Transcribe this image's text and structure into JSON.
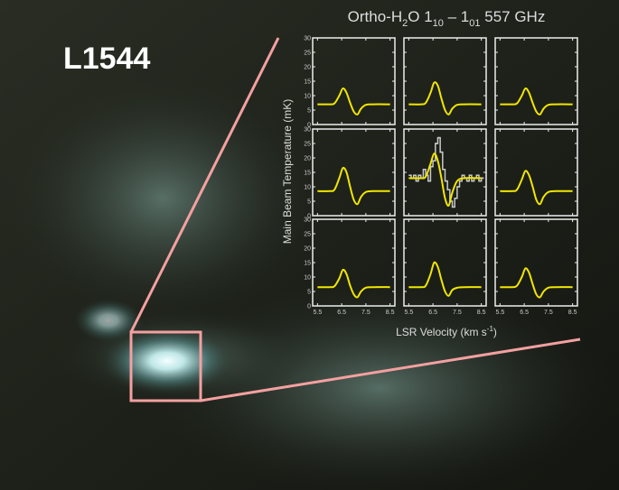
{
  "chart_data": {
    "type": "line",
    "source": "L1544",
    "title": {
      "parts": [
        "Ortho-H",
        "2",
        "O 1",
        "10",
        " – 1",
        "01",
        " 557 GHz"
      ]
    },
    "y_label": "Main Beam Temperature (mK)",
    "x_label": {
      "parts": [
        "LSR Velocity (km s",
        "-1",
        ")"
      ]
    },
    "xlim": [
      5.3,
      8.7
    ],
    "xticks": [
      5.5,
      6.5,
      7.5,
      8.5
    ],
    "ylim": [
      0,
      30
    ],
    "yticks": [
      0,
      5,
      10,
      15,
      20,
      25,
      30
    ],
    "color": "#f2e600",
    "observed_color": "#c8c8c8",
    "panels": [
      {
        "x": [
          5.5,
          6.0,
          6.2,
          6.4,
          6.55,
          6.7,
          6.85,
          7.0,
          7.15,
          7.3,
          7.5,
          7.8,
          8.5
        ],
        "values": [
          7,
          7,
          7.3,
          10,
          12.5,
          11,
          7.5,
          4.5,
          3.5,
          5.5,
          6.8,
          7,
          7
        ]
      },
      {
        "x": [
          5.5,
          6.0,
          6.2,
          6.4,
          6.55,
          6.7,
          6.85,
          7.0,
          7.15,
          7.3,
          7.5,
          7.8,
          8.5
        ],
        "values": [
          7,
          7,
          7.5,
          11,
          14.5,
          13.5,
          9,
          5,
          3.5,
          5.5,
          6.8,
          7,
          7
        ]
      },
      {
        "x": [
          5.5,
          6.0,
          6.2,
          6.4,
          6.55,
          6.7,
          6.85,
          7.0,
          7.15,
          7.3,
          7.5,
          7.8,
          8.5
        ],
        "values": [
          7,
          7,
          7.3,
          10,
          12.5,
          11,
          7.5,
          4.5,
          3.5,
          5.5,
          6.8,
          7,
          7
        ]
      },
      {
        "x": [
          5.5,
          6.0,
          6.2,
          6.4,
          6.55,
          6.7,
          6.85,
          7.0,
          7.15,
          7.3,
          7.5,
          7.8,
          8.5
        ],
        "values": [
          8.5,
          8.5,
          9,
          13,
          16.5,
          15,
          10,
          5.5,
          4,
          6.5,
          8.2,
          8.5,
          8.5
        ]
      },
      {
        "x": [
          5.5,
          6.0,
          6.2,
          6.4,
          6.55,
          6.7,
          6.85,
          7.0,
          7.15,
          7.3,
          7.5,
          7.8,
          8.5
        ],
        "values": [
          13,
          13,
          13.5,
          18,
          21.5,
          19,
          13,
          6,
          3.5,
          8,
          12,
          13,
          13
        ],
        "observed": {
          "bins": [
            5.5,
            5.6,
            5.7,
            5.8,
            5.9,
            6.0,
            6.1,
            6.2,
            6.3,
            6.4,
            6.5,
            6.6,
            6.7,
            6.8,
            6.9,
            7.0,
            7.1,
            7.2,
            7.3,
            7.4,
            7.5,
            7.6,
            7.7,
            7.8,
            7.9,
            8.0,
            8.1,
            8.2,
            8.3,
            8.4,
            8.5,
            8.6
          ],
          "values": [
            14,
            13,
            14,
            12,
            14,
            13,
            16,
            14,
            12,
            17,
            19,
            25,
            27,
            22,
            16,
            12,
            9,
            5,
            3,
            6,
            10,
            12,
            14,
            13,
            12,
            14,
            12,
            13,
            14,
            12,
            13
          ]
        }
      },
      {
        "x": [
          5.5,
          6.0,
          6.2,
          6.4,
          6.55,
          6.7,
          6.85,
          7.0,
          7.15,
          7.3,
          7.5,
          7.8,
          8.5
        ],
        "values": [
          8.5,
          8.5,
          9,
          12.5,
          15.5,
          14,
          10,
          5.5,
          4,
          6.5,
          8.2,
          8.5,
          8.5
        ]
      },
      {
        "x": [
          5.5,
          6.0,
          6.2,
          6.4,
          6.55,
          6.7,
          6.85,
          7.0,
          7.15,
          7.3,
          7.5,
          7.8,
          8.5
        ],
        "values": [
          6.5,
          6.5,
          6.8,
          9.5,
          12.5,
          11,
          7,
          4,
          3,
          5,
          6.3,
          6.5,
          6.5
        ]
      },
      {
        "x": [
          5.5,
          6.0,
          6.2,
          6.4,
          6.55,
          6.7,
          6.85,
          7.0,
          7.15,
          7.3,
          7.5,
          7.8,
          8.5
        ],
        "values": [
          6.5,
          6.5,
          7,
          11,
          15,
          13.5,
          9,
          5,
          3.5,
          5.5,
          6.3,
          6.5,
          6.5
        ]
      },
      {
        "x": [
          5.5,
          6.0,
          6.2,
          6.4,
          6.55,
          6.7,
          6.85,
          7.0,
          7.15,
          7.3,
          7.5,
          7.8,
          8.5
        ],
        "values": [
          6.5,
          6.5,
          7,
          10,
          13,
          11.5,
          7.5,
          4,
          3,
          5,
          6.3,
          6.5,
          6.5
        ]
      }
    ]
  }
}
